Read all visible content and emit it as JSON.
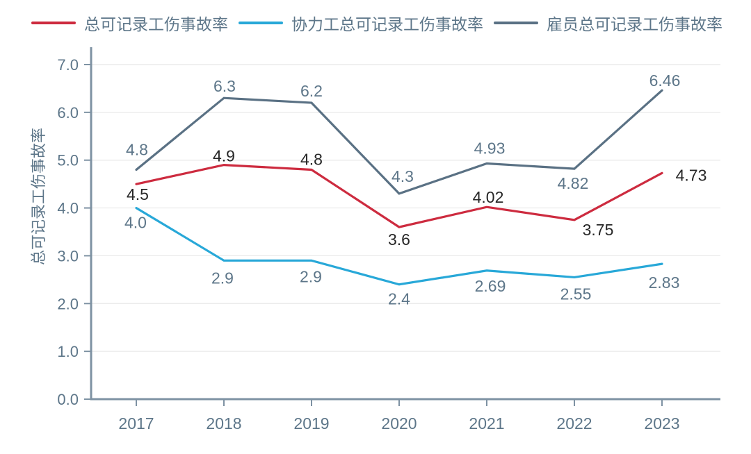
{
  "chart_data": {
    "type": "line",
    "title": "",
    "xlabel": "",
    "ylabel": "总可记录工伤事故率",
    "categories": [
      "2017",
      "2018",
      "2019",
      "2020",
      "2021",
      "2022",
      "2023"
    ],
    "y_ticks": [
      "0.0",
      "1.0",
      "2.0",
      "3.0",
      "4.0",
      "5.0",
      "6.0",
      "7.0"
    ],
    "ylim": [
      0,
      7
    ],
    "grid": true,
    "legend_position": "top",
    "colors": {
      "axis": "#7e92a3",
      "grid": "#e8e8e8",
      "tick_label": "#5d7689",
      "background": "#ffffff"
    },
    "series": [
      {
        "name": "总可记录工伤事故率",
        "color": "#cd2b3f",
        "label_color": "#272727",
        "values": [
          4.5,
          4.9,
          4.8,
          3.6,
          4.02,
          3.75,
          4.73
        ],
        "labels": [
          "4.5",
          "4.9",
          "4.8",
          "3.6",
          "4.02",
          "3.75",
          "4.73"
        ],
        "label_offsets": [
          [
            2,
            15
          ],
          [
            0,
            -13
          ],
          [
            0,
            -15
          ],
          [
            0,
            18
          ],
          [
            2,
            -14
          ],
          [
            34,
            14
          ],
          [
            42,
            3
          ]
        ]
      },
      {
        "name": "协力工总可记录工伤事故率",
        "color": "#28a8d8",
        "label_color": "#5d7689",
        "values": [
          4.0,
          2.9,
          2.9,
          2.4,
          2.69,
          2.55,
          2.83
        ],
        "labels": [
          "4.0",
          "2.9",
          "2.9",
          "2.4",
          "2.69",
          "2.55",
          "2.83"
        ],
        "label_offsets": [
          [
            -1,
            21
          ],
          [
            -2,
            25
          ],
          [
            -1,
            23
          ],
          [
            0,
            21
          ],
          [
            5,
            22
          ],
          [
            2,
            24
          ],
          [
            3,
            27
          ]
        ]
      },
      {
        "name": "雇员总可记录工伤事故率",
        "color": "#5a7184",
        "label_color": "#5d7689",
        "values": [
          4.8,
          6.3,
          6.2,
          4.3,
          4.93,
          4.82,
          6.46
        ],
        "labels": [
          "4.8",
          "6.3",
          "6.2",
          "4.3",
          "4.93",
          "4.82",
          "6.46"
        ],
        "label_offsets": [
          [
            1,
            -29
          ],
          [
            1,
            -17
          ],
          [
            0,
            -17
          ],
          [
            5,
            -25
          ],
          [
            4,
            -22
          ],
          [
            -2,
            21
          ],
          [
            4,
            -14
          ]
        ]
      }
    ]
  }
}
